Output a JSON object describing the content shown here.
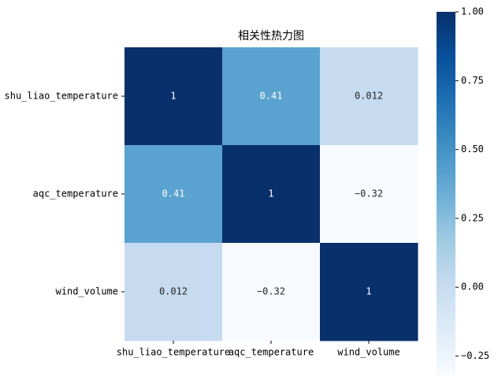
{
  "chart_data": {
    "type": "heatmap",
    "title": "相关性热力图",
    "categories": [
      "shu_liao_temperature",
      "aqc_temperature",
      "wind_volume"
    ],
    "values": [
      [
        1,
        0.41,
        0.012
      ],
      [
        0.41,
        1,
        -0.32
      ],
      [
        0.012,
        -0.32,
        1
      ]
    ],
    "value_labels": [
      [
        "1",
        "0.41",
        "0.012"
      ],
      [
        "0.41",
        "1",
        "−0.32"
      ],
      [
        "0.012",
        "−0.32",
        "1"
      ]
    ],
    "colorscale": [
      "#f7fbff",
      "#deebf7",
      "#c6dbef",
      "#9ecae1",
      "#6baed6",
      "#4292c6",
      "#2171b5",
      "#08519c",
      "#08306b"
    ],
    "clim": [
      -0.32,
      1
    ],
    "cticks": [
      {
        "value": -0.25,
        "label": "−0.25"
      },
      {
        "value": 0,
        "label": "0.00"
      },
      {
        "value": 0.25,
        "label": "0.25"
      },
      {
        "value": 0.5,
        "label": "0.50"
      },
      {
        "value": 0.75,
        "label": "0.75"
      },
      {
        "value": 1,
        "label": "1.00"
      }
    ]
  }
}
